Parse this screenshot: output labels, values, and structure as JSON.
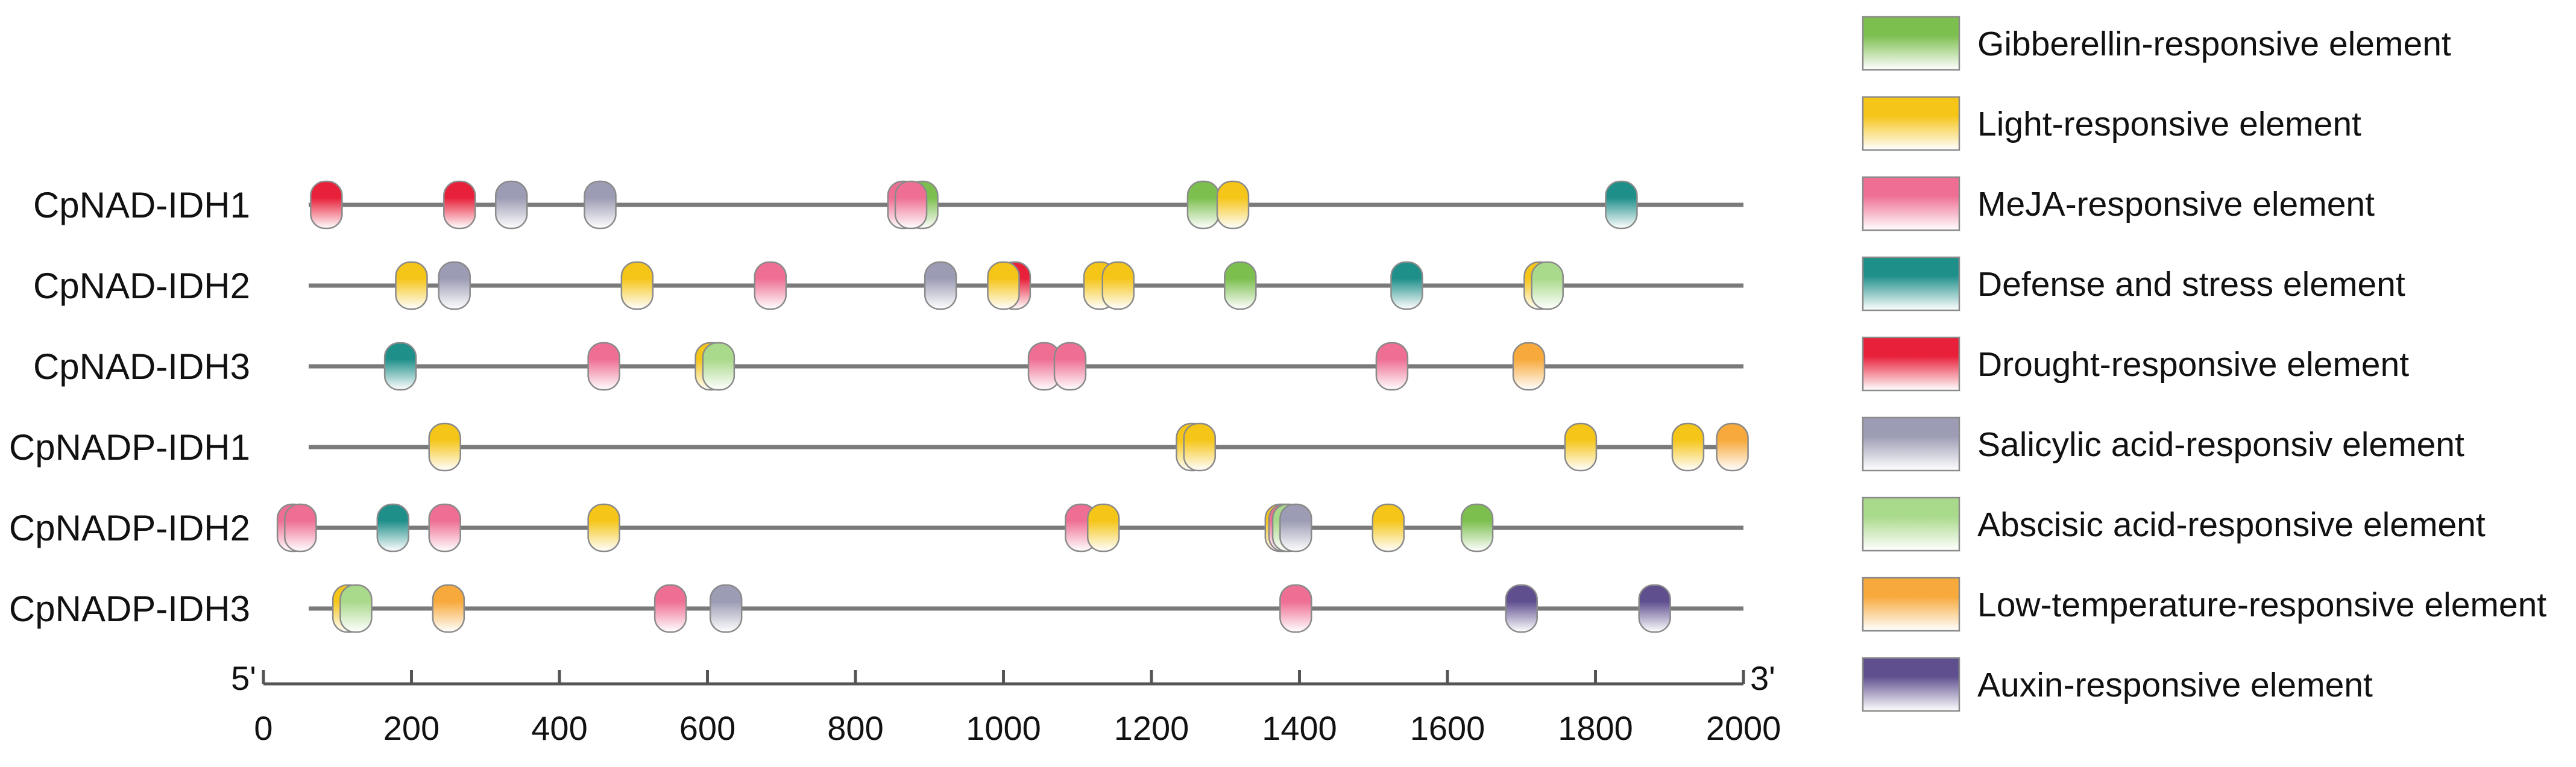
{
  "chart_data": {
    "type": "promoter-element-map",
    "genes": [
      "CpNAD-IDH1",
      "CpNAD-IDH2",
      "CpNAD-IDH3",
      "CpNADP-IDH1",
      "CpNADP-IDH2",
      "CpNADP-IDH3"
    ],
    "x_axis": {
      "min": 0,
      "max": 2000,
      "ticks": [
        0,
        200,
        400,
        600,
        800,
        1000,
        1200,
        1400,
        1600,
        1800,
        2000
      ],
      "start_label": "5'",
      "end_label": "3'"
    },
    "element_types": [
      {
        "id": "gibberellin",
        "label": "Gibberellin-responsive element",
        "color": "#7cbf4f"
      },
      {
        "id": "light",
        "label": "Light-responsive element",
        "color": "#f5c518"
      },
      {
        "id": "meja",
        "label": "MeJA-responsive element",
        "color": "#ee6f93"
      },
      {
        "id": "defense",
        "label": "Defense and stress element",
        "color": "#1f8f8a"
      },
      {
        "id": "drought",
        "label": "Drought-responsive element",
        "color": "#e8203a"
      },
      {
        "id": "salicylic",
        "label": "Salicylic acid-responsiv element",
        "color": "#9c9cb4"
      },
      {
        "id": "abscisic",
        "label": "Abscisic acid-responsive element",
        "color": "#a9d98a"
      },
      {
        "id": "lowtemp",
        "label": "Low-temperature-responsive element",
        "color": "#f7a93b"
      },
      {
        "id": "auxin",
        "label": "Auxin-responsive element",
        "color": "#5f4f8f"
      }
    ],
    "elements": [
      [
        {
          "type": "drought",
          "pos": 85
        },
        {
          "type": "drought",
          "pos": 265
        },
        {
          "type": "salicylic",
          "pos": 335
        },
        {
          "type": "salicylic",
          "pos": 455
        },
        {
          "type": "meja",
          "pos": 865
        },
        {
          "type": "gibberellin",
          "pos": 890
        },
        {
          "type": "meja",
          "pos": 875
        },
        {
          "type": "gibberellin",
          "pos": 1270
        },
        {
          "type": "light",
          "pos": 1310
        },
        {
          "type": "defense",
          "pos": 1835
        }
      ],
      [
        {
          "type": "light",
          "pos": 200
        },
        {
          "type": "salicylic",
          "pos": 258
        },
        {
          "type": "light",
          "pos": 505
        },
        {
          "type": "meja",
          "pos": 685
        },
        {
          "type": "salicylic",
          "pos": 915
        },
        {
          "type": "drought",
          "pos": 1015
        },
        {
          "type": "light",
          "pos": 1000
        },
        {
          "type": "light",
          "pos": 1130
        },
        {
          "type": "light",
          "pos": 1155
        },
        {
          "type": "gibberellin",
          "pos": 1320
        },
        {
          "type": "defense",
          "pos": 1545
        },
        {
          "type": "light",
          "pos": 1725
        },
        {
          "type": "abscisic",
          "pos": 1735
        }
      ],
      [
        {
          "type": "defense",
          "pos": 185
        },
        {
          "type": "meja",
          "pos": 460
        },
        {
          "type": "light",
          "pos": 605
        },
        {
          "type": "abscisic",
          "pos": 615
        },
        {
          "type": "meja",
          "pos": 1055
        },
        {
          "type": "meja",
          "pos": 1090
        },
        {
          "type": "meja",
          "pos": 1525
        },
        {
          "type": "lowtemp",
          "pos": 1710
        }
      ],
      [
        {
          "type": "light",
          "pos": 245
        },
        {
          "type": "light",
          "pos": 1255
        },
        {
          "type": "light",
          "pos": 1265
        },
        {
          "type": "light",
          "pos": 1780
        },
        {
          "type": "light",
          "pos": 1925
        },
        {
          "type": "lowtemp",
          "pos": 1985
        }
      ],
      [
        {
          "type": "meja",
          "pos": 40
        },
        {
          "type": "meja",
          "pos": 50
        },
        {
          "type": "defense",
          "pos": 175
        },
        {
          "type": "meja",
          "pos": 245
        },
        {
          "type": "light",
          "pos": 460
        },
        {
          "type": "meja",
          "pos": 1105
        },
        {
          "type": "light",
          "pos": 1135
        },
        {
          "type": "light",
          "pos": 1375
        },
        {
          "type": "meja",
          "pos": 1380
        },
        {
          "type": "abscisic",
          "pos": 1385
        },
        {
          "type": "salicylic",
          "pos": 1395
        },
        {
          "type": "light",
          "pos": 1520
        },
        {
          "type": "gibberellin",
          "pos": 1640
        }
      ],
      [
        {
          "type": "light",
          "pos": 115
        },
        {
          "type": "abscisic",
          "pos": 125
        },
        {
          "type": "lowtemp",
          "pos": 250
        },
        {
          "type": "meja",
          "pos": 550
        },
        {
          "type": "salicylic",
          "pos": 625
        },
        {
          "type": "meja",
          "pos": 1395
        },
        {
          "type": "auxin",
          "pos": 1700
        },
        {
          "type": "auxin",
          "pos": 1880
        }
      ]
    ]
  }
}
